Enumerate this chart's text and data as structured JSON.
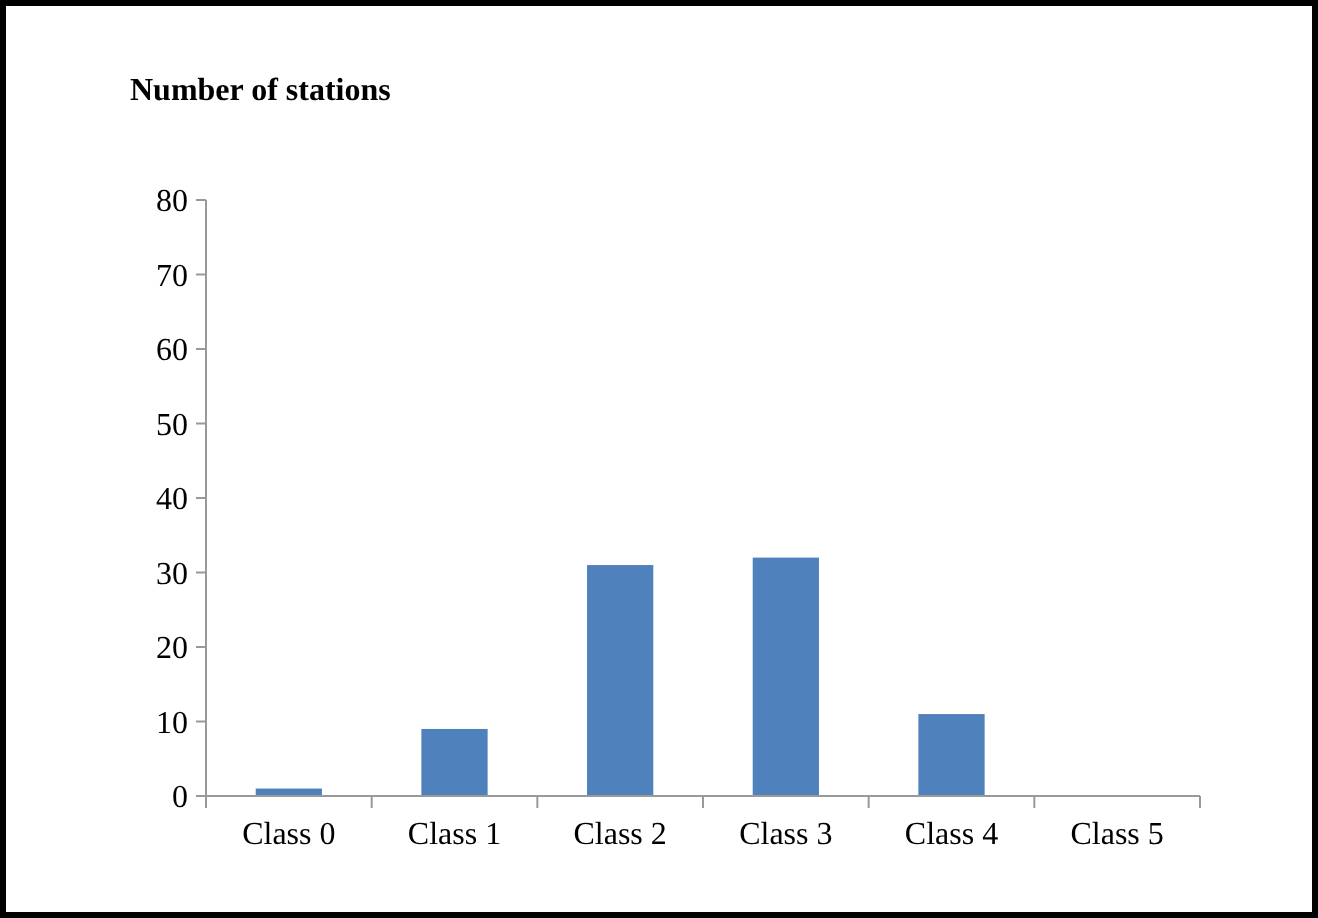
{
  "chart_data": {
    "type": "bar",
    "ylabel": "Number of stations",
    "categories": [
      "Class 0",
      "Class 1",
      "Class 2",
      "Class 3",
      "Class 4",
      "Class 5"
    ],
    "values": [
      1,
      9,
      31,
      32,
      11,
      0
    ],
    "color": "#4f81bd",
    "ylim": [
      0,
      80
    ],
    "yticks": [
      0,
      10,
      20,
      30,
      40,
      50,
      60,
      70,
      80
    ],
    "grid": false
  }
}
